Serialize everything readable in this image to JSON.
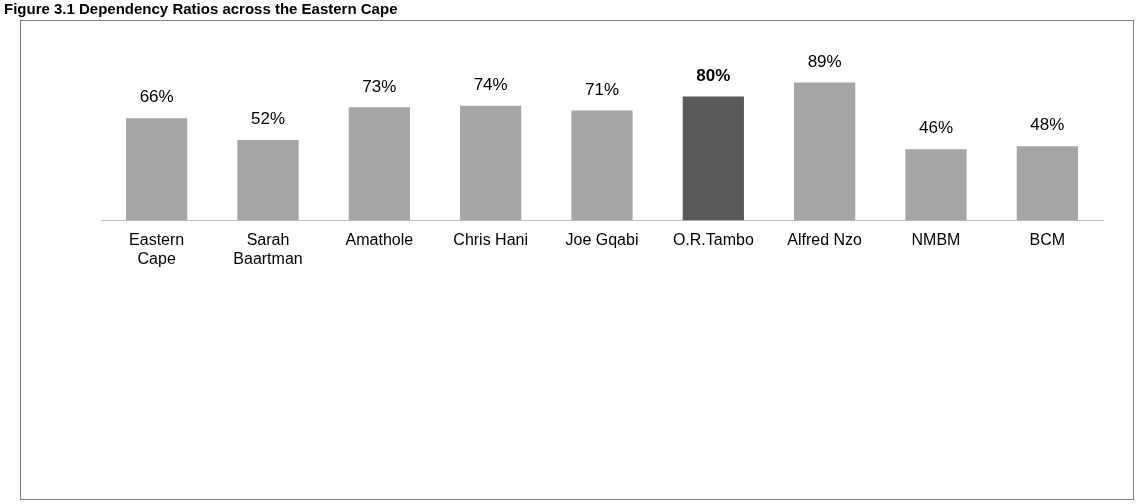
{
  "chart_data": {
    "type": "bar",
    "title": "Figure 3.1 Dependency Ratios across the Eastern Cape",
    "categories": [
      "Eastern Cape",
      "Sarah Baartman",
      "Amathole",
      "Chris Hani",
      "Joe Gqabi",
      "O.R.Tambo",
      "Alfred Nzo",
      "NMBM",
      "BCM"
    ],
    "values": [
      66,
      52,
      73,
      74,
      71,
      80,
      89,
      46,
      48
    ],
    "value_labels": [
      "66%",
      "52%",
      "73%",
      "74%",
      "71%",
      "80%",
      "89%",
      "46%",
      "48%"
    ],
    "colors": [
      "#a5a5a5",
      "#a5a5a5",
      "#a5a5a5",
      "#a5a5a5",
      "#a5a5a5",
      "#595959",
      "#a5a5a5",
      "#a5a5a5",
      "#a5a5a5"
    ],
    "grid": false,
    "legend": false
  }
}
